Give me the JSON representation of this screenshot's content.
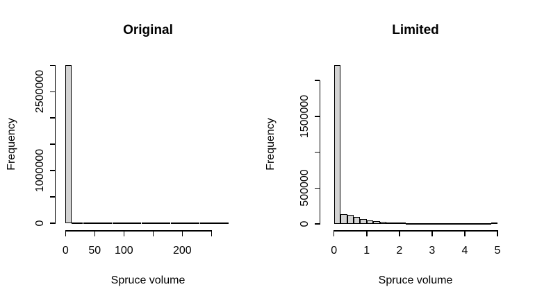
{
  "figure": {
    "background": "#ffffff",
    "text_color": "#000000",
    "bar_fill": "#d3d3d3",
    "bar_border": "#000000"
  },
  "chart_data": [
    {
      "type": "bar",
      "title": "Original",
      "xlabel": "Spruce volume",
      "ylabel": "Frequency",
      "bin_start": 0,
      "bin_width": 10,
      "xlim": [
        0,
        280
      ],
      "ylim": [
        0,
        3000000
      ],
      "grid": false,
      "legend": null,
      "x_ticks": [
        0,
        50,
        100,
        150,
        200,
        250
      ],
      "x_tick_labels": [
        "0",
        "50",
        "100",
        "",
        "200",
        ""
      ],
      "y_ticks": [
        0,
        500000,
        1000000,
        1500000,
        2000000,
        2500000,
        3000000
      ],
      "y_tick_labels": [
        "0",
        "",
        "1000000",
        "",
        "",
        "2500000",
        ""
      ],
      "values": [
        3010000,
        15000,
        9000,
        7000,
        6000,
        5200,
        4600,
        4100,
        3700,
        3300,
        3000,
        2700,
        2500,
        2300,
        2100,
        1900,
        1800,
        1600,
        1500,
        1400,
        1300,
        1200,
        1100,
        1000,
        950,
        900,
        850,
        800
      ]
    },
    {
      "type": "bar",
      "title": "Limited",
      "xlabel": "Spruce volume",
      "ylabel": "Frequency",
      "bin_start": 0,
      "bin_width": 0.2,
      "xlim": [
        0,
        5
      ],
      "ylim": [
        0,
        2250000
      ],
      "grid": false,
      "legend": null,
      "x_ticks": [
        0,
        1,
        2,
        3,
        4,
        5
      ],
      "x_tick_labels": [
        "0",
        "1",
        "2",
        "3",
        "4",
        "5"
      ],
      "y_ticks": [
        0,
        500000,
        1000000,
        1500000,
        2000000
      ],
      "y_tick_labels": [
        "0",
        "500000",
        "",
        "1500000",
        ""
      ],
      "values": [
        2210000,
        138000,
        126000,
        97000,
        72000,
        50000,
        39000,
        30000,
        23000,
        19000,
        16000,
        14000,
        12500,
        11000,
        10000,
        9000,
        8200,
        7500,
        7000,
        6500,
        6000,
        5600,
        5300,
        5000,
        18000
      ]
    }
  ]
}
